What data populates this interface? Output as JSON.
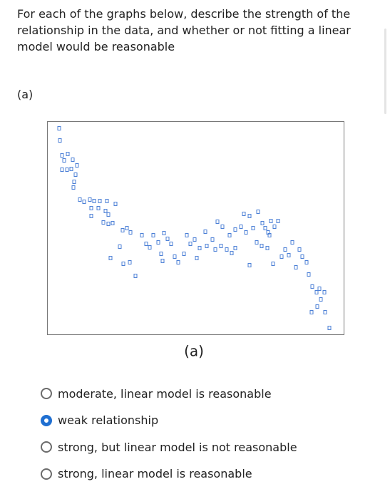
{
  "question": {
    "text": "For each of the graphs below, describe the strength of the relationship in the data, and whether or not fitting a linear model would be reasonable",
    "part": "(a)"
  },
  "chart_data": {
    "type": "scatter",
    "caption": "(a)",
    "color": "#4b7fd6",
    "xlim": [
      0,
      416
    ],
    "ylim": [
      0,
      299
    ],
    "x": [
      17,
      18,
      21,
      29,
      24,
      36,
      21,
      28,
      34,
      42,
      40,
      38,
      37,
      46,
      52,
      60,
      66,
      74,
      84,
      96,
      62,
      72,
      82,
      86,
      62,
      79,
      86,
      92,
      106,
      112,
      117,
      102,
      89,
      107,
      116,
      124,
      133,
      139,
      144,
      149,
      156,
      164,
      169,
      174,
      160,
      162,
      179,
      184,
      192,
      196,
      201,
      207,
      214,
      210,
      222,
      224,
      232,
      236,
      244,
      239,
      246,
      252,
      259,
      264,
      256,
      264,
      272,
      276,
      279,
      284,
      289,
      294,
      296,
      302,
      306,
      310,
      314,
      319,
      324,
      312,
      301,
      309,
      284,
      317,
      329,
      334,
      339,
      344,
      354,
      349,
      358,
      364,
      367,
      372,
      378,
      382,
      389,
      384,
      379,
      371,
      390,
      396
    ],
    "y": [
      289,
      272,
      251,
      253,
      244,
      245,
      231,
      231,
      232,
      237,
      224,
      214,
      206,
      189,
      186,
      189,
      187,
      187,
      187,
      183,
      177,
      177,
      173,
      168,
      166,
      157,
      155,
      156,
      146,
      149,
      143,
      123,
      107,
      99,
      101,
      82,
      139,
      127,
      122,
      139,
      129,
      142,
      134,
      127,
      113,
      103,
      109,
      101,
      113,
      139,
      127,
      133,
      121,
      107,
      144,
      124,
      133,
      119,
      124,
      158,
      151,
      119,
      114,
      121,
      139,
      147,
      151,
      169,
      143,
      166,
      149,
      129,
      172,
      156,
      149,
      143,
      159,
      151,
      159,
      139,
      124,
      121,
      97,
      99,
      109,
      119,
      111,
      129,
      119,
      94,
      109,
      101,
      84,
      67,
      59,
      64,
      59,
      49,
      39,
      31,
      31,
      9
    ]
  },
  "options": [
    {
      "label": "moderate, linear model is reasonable",
      "selected": false
    },
    {
      "label": "weak relationship",
      "selected": true
    },
    {
      "label": "strong, but linear model is not reasonable",
      "selected": false
    },
    {
      "label": "strong, linear model is reasonable",
      "selected": false
    }
  ]
}
